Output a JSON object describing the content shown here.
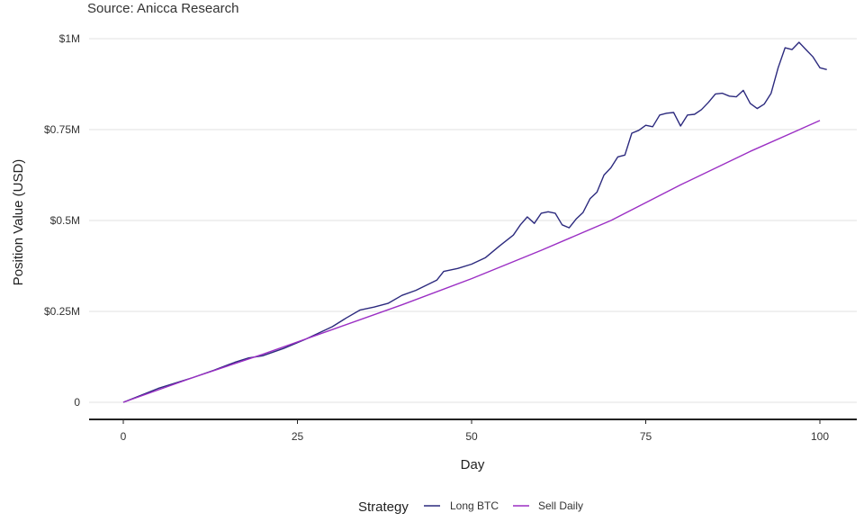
{
  "source": "Source: Anicca Research",
  "colors": {
    "long_btc": "#2c2a7e",
    "sell_daily": "#9b2fc4",
    "grid": "#e2e2e2",
    "axis": "#222222"
  },
  "chart_data": {
    "type": "line",
    "title": "",
    "xlabel": "Day",
    "ylabel": "Position Value (USD)",
    "xlim": [
      0,
      100
    ],
    "ylim": [
      0,
      1000000
    ],
    "x_ticks": [
      0,
      25,
      50,
      75,
      100
    ],
    "x_tick_labels": [
      "0",
      "25",
      "50",
      "75",
      "100"
    ],
    "y_ticks": [
      0,
      250000,
      500000,
      750000,
      1000000
    ],
    "y_tick_labels": [
      "0",
      "$0.25M",
      "$0.5M",
      "$0.75M",
      "$1M"
    ],
    "grid": true,
    "legend": {
      "title": "Strategy",
      "position": "bottom",
      "labels": [
        "Long BTC",
        "Sell Daily"
      ]
    },
    "series": [
      {
        "name": "Long BTC",
        "color": "#2c2a7e",
        "points": [
          [
            0,
            0
          ],
          [
            5,
            38000
          ],
          [
            10,
            68000
          ],
          [
            13,
            88000
          ],
          [
            16,
            110000
          ],
          [
            18,
            122000
          ],
          [
            20,
            128000
          ],
          [
            23,
            148000
          ],
          [
            26,
            172000
          ],
          [
            30,
            208000
          ],
          [
            32,
            232000
          ],
          [
            34,
            254000
          ],
          [
            36,
            262000
          ],
          [
            38,
            272000
          ],
          [
            40,
            294000
          ],
          [
            42,
            308000
          ],
          [
            45,
            336000
          ],
          [
            46,
            360000
          ],
          [
            48,
            368000
          ],
          [
            50,
            380000
          ],
          [
            52,
            398000
          ],
          [
            54,
            430000
          ],
          [
            56,
            460000
          ],
          [
            57,
            488000
          ],
          [
            58,
            510000
          ],
          [
            59,
            492000
          ],
          [
            60,
            520000
          ],
          [
            61,
            524000
          ],
          [
            62,
            520000
          ],
          [
            63,
            488000
          ],
          [
            64,
            480000
          ],
          [
            65,
            504000
          ],
          [
            66,
            522000
          ],
          [
            67,
            560000
          ],
          [
            68,
            578000
          ],
          [
            69,
            625000
          ],
          [
            70,
            645000
          ],
          [
            71,
            675000
          ],
          [
            72,
            680000
          ],
          [
            73,
            740000
          ],
          [
            74,
            748000
          ],
          [
            75,
            762000
          ],
          [
            76,
            758000
          ],
          [
            77,
            790000
          ],
          [
            78,
            795000
          ],
          [
            79,
            797000
          ],
          [
            80,
            760000
          ],
          [
            81,
            790000
          ],
          [
            82,
            792000
          ],
          [
            83,
            805000
          ],
          [
            84,
            825000
          ],
          [
            85,
            848000
          ],
          [
            86,
            850000
          ],
          [
            87,
            842000
          ],
          [
            88,
            840000
          ],
          [
            89,
            858000
          ],
          [
            90,
            822000
          ],
          [
            91,
            808000
          ],
          [
            92,
            820000
          ],
          [
            93,
            850000
          ],
          [
            94,
            920000
          ],
          [
            95,
            975000
          ],
          [
            96,
            970000
          ],
          [
            97,
            990000
          ],
          [
            98,
            970000
          ],
          [
            99,
            950000
          ],
          [
            100,
            920000
          ],
          [
            101,
            915000
          ]
        ]
      },
      {
        "name": "Sell Daily",
        "color": "#9b2fc4",
        "points": [
          [
            0,
            0
          ],
          [
            10,
            68000
          ],
          [
            20,
            132000
          ],
          [
            30,
            200000
          ],
          [
            40,
            268000
          ],
          [
            50,
            340000
          ],
          [
            60,
            418000
          ],
          [
            70,
            500000
          ],
          [
            80,
            598000
          ],
          [
            90,
            690000
          ],
          [
            100,
            775000
          ]
        ]
      }
    ]
  }
}
